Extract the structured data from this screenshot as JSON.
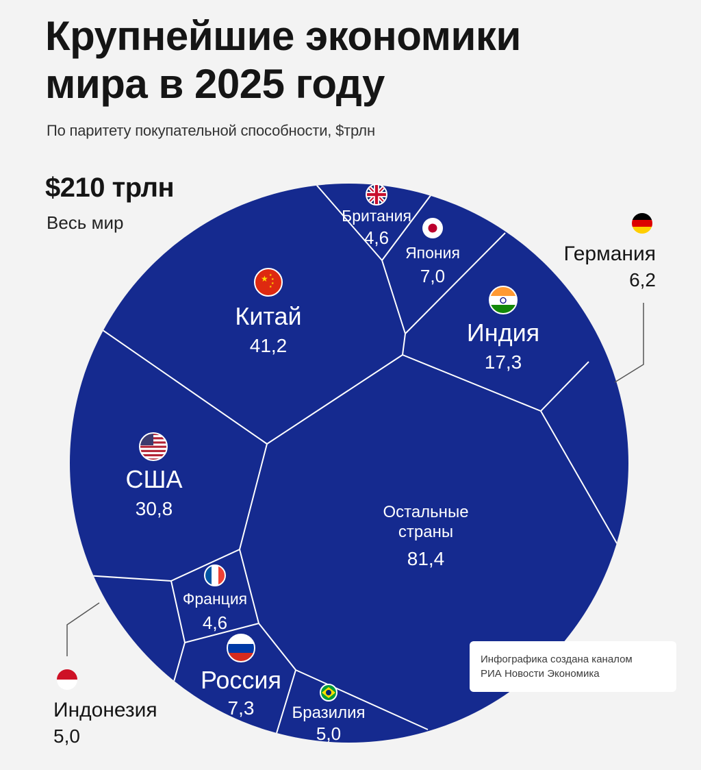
{
  "chart_data": {
    "type": "treemap",
    "title": "Крупнейшие экономики мира в 2025 году",
    "subtitle": "По паритету покупательной способности, $трлн",
    "total": {
      "value": "$210 трлн",
      "label": "Весь мир"
    },
    "cells": [
      {
        "key": "china",
        "name": "Китай",
        "value": 41.2,
        "value_label": "41,2",
        "flag": "flag-china"
      },
      {
        "key": "usa",
        "name": "США",
        "value": 30.8,
        "value_label": "30,8",
        "flag": "flag-usa"
      },
      {
        "key": "india",
        "name": "Индия",
        "value": 17.3,
        "value_label": "17,3",
        "flag": "flag-india"
      },
      {
        "key": "russia",
        "name": "Россия",
        "value": 7.3,
        "value_label": "7,3",
        "flag": "flag-russia"
      },
      {
        "key": "japan",
        "name": "Япония",
        "value": 7.0,
        "value_label": "7,0",
        "flag": "flag-japan"
      },
      {
        "key": "germany",
        "name": "Германия",
        "value": 6.2,
        "value_label": "6,2",
        "flag": "flag-germany"
      },
      {
        "key": "indonesia",
        "name": "Индонезия",
        "value": 5.0,
        "value_label": "5,0",
        "flag": "flag-indonesia"
      },
      {
        "key": "brazil",
        "name": "Бразилия",
        "value": 5.0,
        "value_label": "5,0",
        "flag": "flag-brazil"
      },
      {
        "key": "britain",
        "name": "Британия",
        "value": 4.6,
        "value_label": "4,6",
        "flag": "flag-uk"
      },
      {
        "key": "france",
        "name": "Франция",
        "value": 4.6,
        "value_label": "4,6",
        "flag": "flag-france"
      },
      {
        "key": "rest",
        "name": "Остальные страны",
        "name_lines": [
          "Остальные",
          "страны"
        ],
        "value": 81.4,
        "value_label": "81,4"
      }
    ]
  },
  "credit": {
    "line1": "Инфографика создана каналом",
    "line2": "РИА Новости Экономика"
  },
  "colors": {
    "circle": "#152a8f",
    "borders": "#ffffff",
    "background": "#f3f3f3",
    "text_dark": "#151515"
  }
}
